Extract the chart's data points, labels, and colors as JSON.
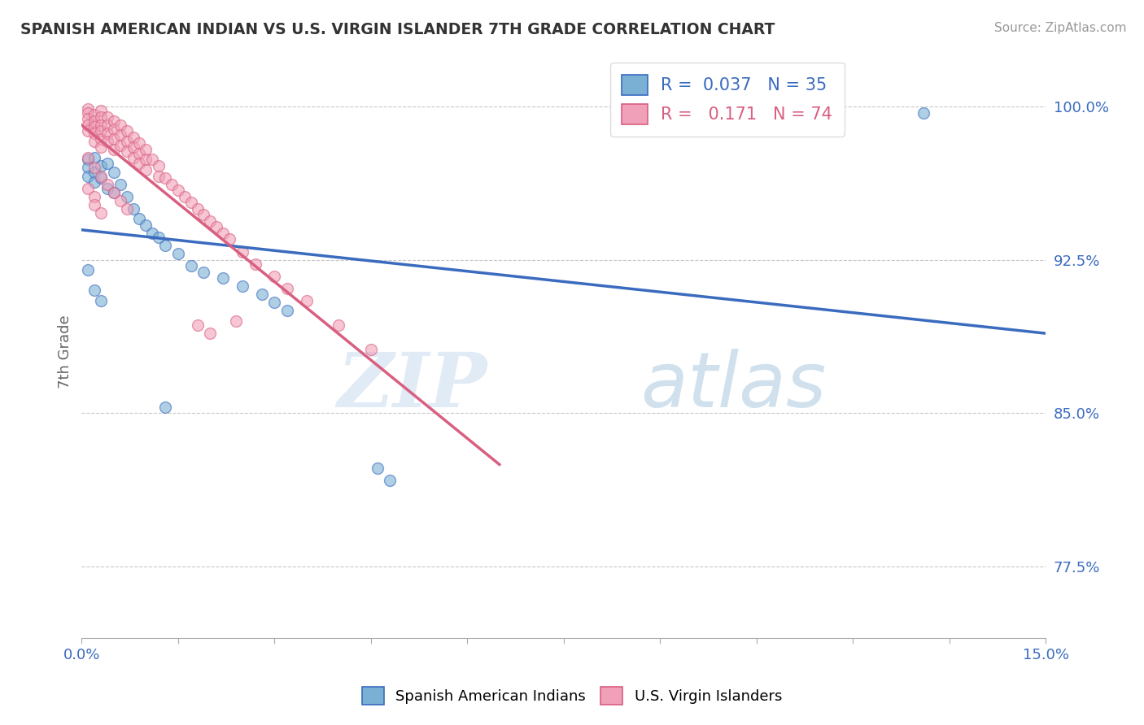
{
  "title": "SPANISH AMERICAN INDIAN VS U.S. VIRGIN ISLANDER 7TH GRADE CORRELATION CHART",
  "source": "Source: ZipAtlas.com",
  "ylabel": "7th Grade",
  "xlim": [
    0.0,
    0.15
  ],
  "ylim": [
    0.74,
    1.02
  ],
  "ytick_positions": [
    0.775,
    0.85,
    0.925,
    1.0
  ],
  "ytick_labels": [
    "77.5%",
    "85.0%",
    "92.5%",
    "100.0%"
  ],
  "grid_color": "#c8c8c8",
  "background_color": "#ffffff",
  "blue_color": "#7ab0d4",
  "pink_color": "#f0a0b8",
  "blue_line_color": "#3a6bbf",
  "pink_line_color": "#d95f80",
  "legend_r_blue": "0.037",
  "legend_n_blue": "35",
  "legend_r_pink": "0.171",
  "legend_n_pink": "74",
  "blue_scatter_x": [
    0.001,
    0.001,
    0.001,
    0.002,
    0.002,
    0.002,
    0.003,
    0.003,
    0.004,
    0.004,
    0.005,
    0.005,
    0.006,
    0.007,
    0.008,
    0.009,
    0.01,
    0.011,
    0.012,
    0.013,
    0.015,
    0.017,
    0.019,
    0.022,
    0.025,
    0.028,
    0.03,
    0.032,
    0.001,
    0.002,
    0.003,
    0.013,
    0.046,
    0.048,
    0.131
  ],
  "blue_scatter_y": [
    0.974,
    0.97,
    0.966,
    0.975,
    0.968,
    0.963,
    0.971,
    0.965,
    0.972,
    0.96,
    0.968,
    0.958,
    0.962,
    0.956,
    0.95,
    0.945,
    0.942,
    0.938,
    0.936,
    0.932,
    0.928,
    0.922,
    0.919,
    0.916,
    0.912,
    0.908,
    0.904,
    0.9,
    0.92,
    0.91,
    0.905,
    0.853,
    0.823,
    0.817,
    0.997
  ],
  "pink_scatter_x": [
    0.001,
    0.001,
    0.001,
    0.001,
    0.001,
    0.002,
    0.002,
    0.002,
    0.002,
    0.002,
    0.003,
    0.003,
    0.003,
    0.003,
    0.003,
    0.003,
    0.004,
    0.004,
    0.004,
    0.004,
    0.005,
    0.005,
    0.005,
    0.005,
    0.006,
    0.006,
    0.006,
    0.007,
    0.007,
    0.007,
    0.008,
    0.008,
    0.008,
    0.009,
    0.009,
    0.009,
    0.01,
    0.01,
    0.01,
    0.011,
    0.012,
    0.012,
    0.013,
    0.014,
    0.015,
    0.016,
    0.017,
    0.018,
    0.019,
    0.02,
    0.021,
    0.022,
    0.023,
    0.025,
    0.027,
    0.03,
    0.032,
    0.035,
    0.04,
    0.045,
    0.001,
    0.002,
    0.003,
    0.004,
    0.005,
    0.006,
    0.007,
    0.024,
    0.018,
    0.02,
    0.001,
    0.002,
    0.002,
    0.003
  ],
  "pink_scatter_y": [
    0.999,
    0.997,
    0.994,
    0.991,
    0.988,
    0.996,
    0.993,
    0.99,
    0.987,
    0.983,
    0.998,
    0.995,
    0.991,
    0.988,
    0.984,
    0.98,
    0.995,
    0.991,
    0.987,
    0.983,
    0.993,
    0.989,
    0.984,
    0.979,
    0.991,
    0.986,
    0.981,
    0.988,
    0.983,
    0.978,
    0.985,
    0.98,
    0.975,
    0.982,
    0.977,
    0.972,
    0.979,
    0.974,
    0.969,
    0.974,
    0.971,
    0.966,
    0.965,
    0.962,
    0.959,
    0.956,
    0.953,
    0.95,
    0.947,
    0.944,
    0.941,
    0.938,
    0.935,
    0.929,
    0.923,
    0.917,
    0.911,
    0.905,
    0.893,
    0.881,
    0.975,
    0.97,
    0.966,
    0.962,
    0.958,
    0.954,
    0.95,
    0.895,
    0.893,
    0.889,
    0.96,
    0.956,
    0.952,
    0.948
  ],
  "watermark_zip": "ZIP",
  "watermark_atlas": "atlas"
}
